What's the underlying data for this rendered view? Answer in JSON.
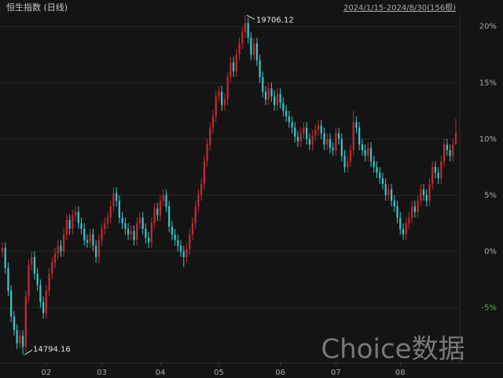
{
  "chart_data": {
    "type": "candlestick",
    "title": "恒生指数 (日线)",
    "range_label": "2024/1/15-2024/8/30(156根)",
    "watermark": "Choice数据",
    "max_label": "19706.12",
    "min_label": "14794.16",
    "up_color": "#c42a30",
    "down_color": "#3cc4c8",
    "ylim": [
      -9.8,
      21.8
    ],
    "yticks": [
      {
        "value": 20,
        "label": "20%"
      },
      {
        "value": 15,
        "label": "15%"
      },
      {
        "value": 10,
        "label": "10%"
      },
      {
        "value": 5,
        "label": "5%"
      },
      {
        "value": 0,
        "label": "0%"
      },
      {
        "value": -5,
        "label": "-5%"
      }
    ],
    "xticks": [
      {
        "value": 15,
        "label": "02"
      },
      {
        "value": 34,
        "label": "03"
      },
      {
        "value": 54,
        "label": "04"
      },
      {
        "value": 74,
        "label": "05"
      },
      {
        "value": 95,
        "label": "06"
      },
      {
        "value": 114,
        "label": "07"
      },
      {
        "value": 136,
        "label": "08"
      }
    ],
    "grid": true,
    "open": [
      0,
      0.3,
      -1.5,
      -3.5,
      -5.8,
      -7.0,
      -8.2,
      -7.5,
      -8.5,
      -4.0,
      -1.2,
      -0.5,
      -2.0,
      -3.0,
      -4.5,
      -5.5,
      -3.5,
      -2.0,
      -1.0,
      -0.2,
      0.5,
      0.0,
      1.5,
      2.8,
      2.0,
      3.2,
      3.5,
      2.5,
      2.0,
      1.0,
      0.8,
      1.5,
      0.5,
      -0.5,
      1.0,
      2.0,
      2.5,
      3.0,
      4.0,
      5.2,
      4.5,
      3.0,
      2.5,
      2.0,
      1.5,
      1.8,
      1.0,
      2.5,
      3.0,
      2.0,
      1.2,
      0.8,
      2.5,
      3.8,
      3.2,
      4.5,
      5.0,
      4.0,
      2.2,
      1.5,
      1.0,
      0.5,
      0.0,
      -0.5,
      0.2,
      1.5,
      2.5,
      4.0,
      5.0,
      6.0,
      8.0,
      9.5,
      11.0,
      12.0,
      13.8,
      14.2,
      13.0,
      13.5,
      15.5,
      16.8,
      16.0,
      17.5,
      18.5,
      19.5,
      20.3,
      19.0,
      17.5,
      18.5,
      17.0,
      15.5,
      14.2,
      13.5,
      14.5,
      13.8,
      13.0,
      14.0,
      13.2,
      12.5,
      12.0,
      11.5,
      11.0,
      10.2,
      9.8,
      10.5,
      11.0,
      10.0,
      9.5,
      10.3,
      10.8,
      11.2,
      10.5,
      9.5,
      10.0,
      9.2,
      9.0,
      10.5,
      10.0,
      8.5,
      7.5,
      8.0,
      9.0,
      11.5,
      11.0,
      9.5,
      9.0,
      8.5,
      9.2,
      8.0,
      7.5,
      7.0,
      6.5,
      6.0,
      5.0,
      5.5,
      4.5,
      4.0,
      3.0,
      2.0,
      1.5,
      2.5,
      3.0,
      4.0,
      3.5,
      4.5,
      5.5,
      5.0,
      4.5,
      6.0,
      7.5,
      7.0,
      6.5,
      8.0,
      9.5,
      9.0,
      8.5,
      9.5
    ],
    "close": [
      0.3,
      -1.5,
      -3.5,
      -5.8,
      -7.0,
      -8.2,
      -7.5,
      -8.5,
      -4.0,
      -1.2,
      -0.5,
      -2.0,
      -3.0,
      -4.5,
      -5.5,
      -3.5,
      -2.0,
      -1.0,
      -0.2,
      0.5,
      0.0,
      1.5,
      2.8,
      2.0,
      3.2,
      3.5,
      2.5,
      2.0,
      1.0,
      0.8,
      1.5,
      0.5,
      -0.5,
      1.0,
      2.0,
      2.5,
      3.0,
      4.0,
      5.2,
      4.5,
      3.0,
      2.5,
      2.0,
      1.5,
      1.8,
      1.0,
      2.5,
      3.0,
      2.0,
      1.2,
      0.8,
      2.5,
      3.8,
      3.2,
      4.5,
      5.0,
      4.0,
      2.2,
      1.5,
      1.0,
      0.5,
      0.0,
      -0.5,
      0.2,
      1.5,
      2.5,
      4.0,
      5.0,
      6.0,
      8.0,
      9.5,
      11.0,
      12.0,
      13.8,
      14.2,
      13.0,
      13.5,
      15.5,
      16.8,
      16.0,
      17.5,
      18.5,
      19.5,
      20.3,
      19.0,
      17.5,
      18.5,
      17.0,
      15.5,
      14.2,
      13.5,
      14.5,
      13.8,
      13.0,
      14.0,
      13.2,
      12.5,
      12.0,
      11.5,
      11.0,
      10.2,
      9.8,
      10.5,
      11.0,
      10.0,
      9.5,
      10.3,
      10.8,
      11.2,
      10.5,
      9.5,
      10.0,
      9.2,
      9.0,
      10.5,
      10.0,
      8.5,
      7.5,
      8.0,
      9.0,
      11.5,
      11.0,
      9.5,
      9.0,
      8.5,
      9.2,
      8.0,
      7.5,
      7.0,
      6.5,
      6.0,
      5.0,
      5.5,
      4.5,
      4.0,
      3.0,
      2.0,
      1.5,
      2.5,
      3.0,
      4.0,
      3.5,
      4.5,
      5.5,
      5.0,
      4.5,
      6.0,
      7.5,
      7.0,
      6.5,
      8.0,
      9.5,
      9.0,
      8.5,
      9.5,
      10.5
    ],
    "high": [
      0.8,
      0.8,
      -1.0,
      -3.0,
      -5.3,
      -6.5,
      -7.0,
      -7.0,
      -3.5,
      -0.7,
      0.0,
      0.0,
      -1.5,
      -2.5,
      -4.0,
      -3.0,
      -1.5,
      -0.5,
      0.3,
      1.0,
      1.0,
      2.0,
      3.3,
      3.3,
      3.7,
      4.0,
      4.0,
      3.0,
      2.5,
      1.5,
      2.0,
      2.0,
      1.0,
      1.5,
      2.5,
      3.0,
      3.5,
      4.5,
      5.7,
      5.7,
      5.0,
      3.5,
      3.0,
      2.5,
      2.3,
      2.3,
      3.0,
      3.5,
      3.5,
      2.5,
      1.7,
      3.0,
      4.3,
      4.3,
      5.0,
      5.5,
      5.5,
      4.5,
      2.7,
      2.0,
      1.5,
      1.0,
      0.5,
      0.7,
      2.0,
      3.0,
      4.5,
      5.5,
      6.5,
      8.5,
      10.0,
      11.5,
      12.5,
      14.3,
      14.7,
      14.7,
      14.0,
      16.0,
      17.3,
      17.3,
      18.0,
      19.0,
      20.0,
      21.0,
      20.8,
      19.5,
      19.0,
      19.0,
      17.5,
      16.0,
      14.7,
      15.0,
      15.0,
      14.3,
      14.5,
      14.5,
      13.7,
      13.0,
      12.5,
      12.0,
      11.5,
      10.7,
      11.0,
      11.5,
      11.5,
      10.5,
      10.8,
      11.3,
      11.7,
      11.7,
      11.0,
      10.5,
      10.5,
      9.7,
      11.0,
      11.0,
      10.5,
      9.0,
      8.5,
      9.5,
      12.5,
      12.0,
      11.5,
      10.0,
      9.5,
      9.7,
      9.7,
      8.5,
      8.0,
      7.5,
      7.0,
      6.5,
      6.0,
      6.0,
      5.0,
      4.5,
      3.5,
      2.5,
      3.0,
      3.5,
      4.5,
      4.5,
      5.0,
      6.0,
      6.0,
      5.5,
      6.5,
      8.0,
      8.0,
      7.5,
      8.5,
      10.0,
      10.0,
      9.5,
      10.0,
      11.8
    ],
    "low": [
      -0.5,
      -2.0,
      -4.0,
      -6.3,
      -7.5,
      -8.7,
      -8.7,
      -9.2,
      -9.0,
      -4.5,
      -1.7,
      -2.5,
      -3.5,
      -5.0,
      -6.0,
      -6.0,
      -4.0,
      -2.5,
      -1.5,
      -0.7,
      -0.5,
      -0.5,
      1.0,
      1.5,
      1.5,
      2.7,
      2.0,
      1.5,
      0.5,
      0.3,
      0.3,
      0.0,
      -1.0,
      -1.0,
      0.5,
      1.5,
      2.0,
      2.5,
      3.5,
      4.0,
      2.5,
      2.0,
      1.5,
      1.0,
      1.0,
      0.5,
      0.5,
      2.0,
      1.5,
      0.7,
      0.3,
      0.3,
      2.0,
      2.7,
      2.7,
      4.0,
      3.5,
      1.7,
      1.0,
      0.5,
      0.0,
      -0.5,
      -1.4,
      -1.0,
      -0.3,
      1.0,
      2.0,
      3.5,
      4.5,
      5.5,
      7.5,
      9.0,
      10.5,
      11.5,
      13.3,
      12.5,
      12.5,
      13.0,
      15.0,
      15.5,
      15.5,
      17.0,
      18.0,
      19.0,
      18.5,
      17.0,
      17.0,
      16.5,
      15.0,
      13.7,
      13.0,
      13.0,
      13.3,
      12.5,
      12.5,
      12.7,
      12.0,
      11.5,
      11.0,
      10.5,
      9.7,
      9.3,
      9.3,
      10.0,
      9.5,
      9.0,
      9.0,
      9.8,
      10.3,
      10.0,
      9.0,
      9.0,
      8.7,
      8.5,
      8.5,
      9.5,
      8.0,
      7.0,
      7.0,
      7.5,
      8.5,
      10.5,
      9.0,
      8.5,
      8.0,
      8.0,
      7.5,
      7.0,
      6.5,
      6.0,
      5.5,
      4.5,
      4.5,
      4.0,
      3.5,
      2.5,
      1.5,
      1.0,
      1.0,
      2.0,
      2.5,
      3.0,
      3.0,
      4.0,
      4.5,
      4.0,
      4.0,
      5.5,
      6.5,
      6.0,
      6.0,
      7.5,
      8.5,
      8.0,
      8.0,
      9.5
    ]
  }
}
